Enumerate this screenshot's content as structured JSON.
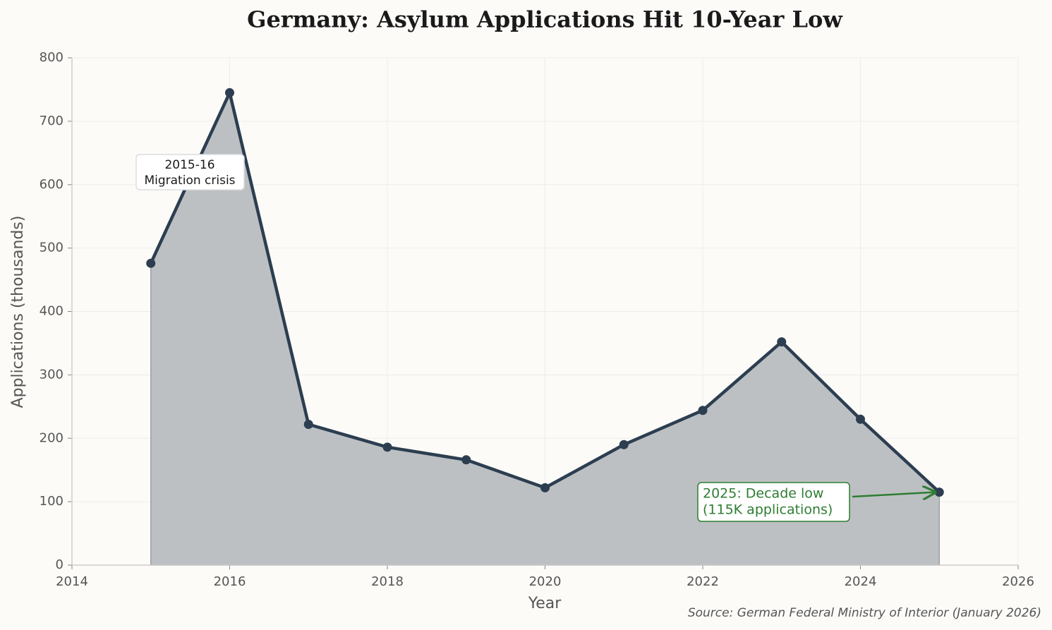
{
  "chart_data": {
    "type": "area-line",
    "title": "Germany: Asylum Applications Hit 10-Year Low",
    "x_label": "Year",
    "y_label": "Applications (thousands)",
    "source": "Source: German Federal Ministry of Interior (January 2026)",
    "x": [
      2015,
      2016,
      2017,
      2018,
      2019,
      2020,
      2021,
      2022,
      2023,
      2024,
      2025
    ],
    "values": [
      476,
      745,
      222,
      186,
      166,
      122,
      190,
      244,
      352,
      230,
      115
    ],
    "color": "#2c3e50",
    "fill_color": "#bdc0c3",
    "xlim": [
      2014,
      2026
    ],
    "xticks": [
      2014,
      2016,
      2018,
      2020,
      2022,
      2024,
      2026
    ],
    "ylim": [
      0,
      800
    ],
    "yticks": [
      0,
      100,
      200,
      300,
      400,
      500,
      600,
      700,
      800
    ],
    "grid": true,
    "annotations": [
      {
        "lines": [
          "2015-16",
          "Migration crisis"
        ],
        "color": "#1a1a1a"
      },
      {
        "lines": [
          "2025: Decade low",
          "(115K applications)"
        ],
        "color": "#2e7d32"
      }
    ]
  }
}
